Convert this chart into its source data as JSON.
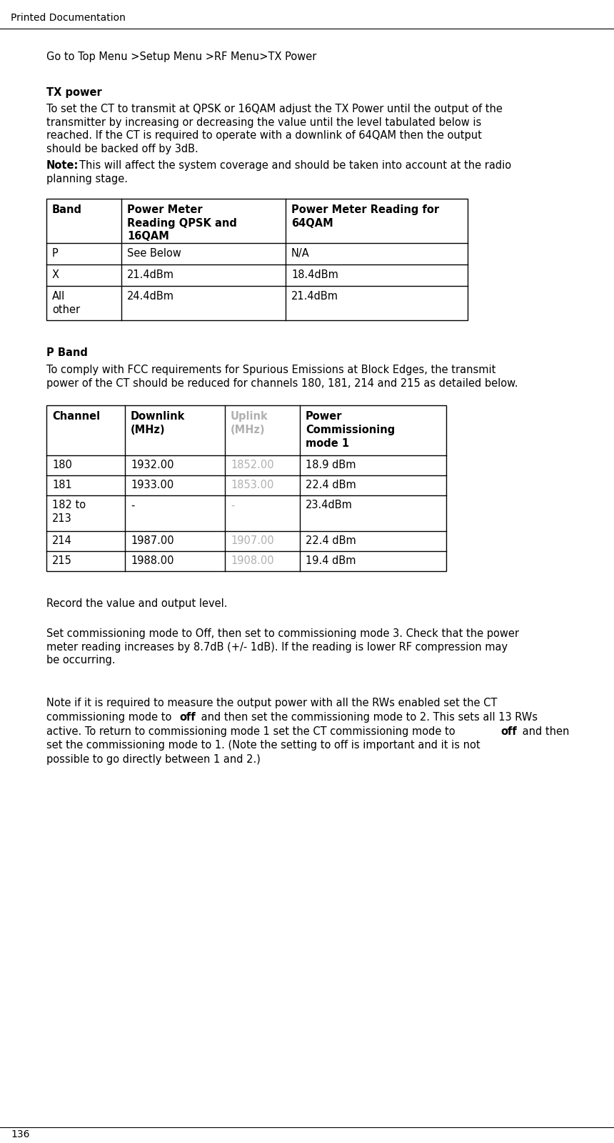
{
  "page_title": "Printed Documentation",
  "page_number": "136",
  "nav_path": "Go to Top Menu >Setup Menu >RF Menu>TX Power",
  "section1_title": "TX power",
  "section1_para": "To set the CT to transmit at QPSK  or 16QAM adjust the TX Power until the output of the transmitter  by increasing or decreasing the value until the level tabulated below is reached.  If the CT is required to operate with a downlink of 64QAM then the output should be backed off by 3dB. ",
  "section1_note_bold": "Note:",
  "section1_note_rest": " This will affect the system coverage and should be taken into account at the radio planning stage.",
  "table1_headers": [
    "Band",
    "Power Meter\nReading QPSK and\n16QAM",
    "Power Meter Reading for\n64QAM"
  ],
  "table1_rows": [
    [
      "P",
      "See Below",
      "N/A"
    ],
    [
      "X",
      "21.4dBm",
      "18.4dBm"
    ],
    [
      "All\nother",
      "24.4dBm",
      "21.4dBm"
    ]
  ],
  "section2_title": "P Band",
  "section2_para": "To comply with FCC requirements for Spurious Emissions at Block Edges, the transmit power of the CT should be reduced for channels 180, 181, 214 and 215 as detailed below.",
  "table2_headers": [
    "Channel",
    "Downlink\n(MHz)",
    "Uplink\n(MHz)",
    "Power\nCommissioning\nmode 1"
  ],
  "table2_header_colors": [
    "#000000",
    "#000000",
    "#b0b0b0",
    "#000000"
  ],
  "table2_rows": [
    [
      "180",
      "1932.00",
      "1852.00",
      "18.9 dBm"
    ],
    [
      "181",
      "1933.00",
      "1853.00",
      "22.4 dBm"
    ],
    [
      "182 to\n213",
      "-",
      "-",
      "23.4dBm"
    ],
    [
      "214",
      "1987.00",
      "1907.00",
      "22.4 dBm"
    ],
    [
      "215",
      "1988.00",
      "1908.00",
      "19.4 dBm"
    ]
  ],
  "table2_col_colors": [
    "#000000",
    "#000000",
    "#b0b0b0",
    "#000000"
  ],
  "para1": "Record the value and output level.",
  "para2": "Set commissioning mode to Off, then set to commissioning mode 3. Check that the power meter reading increases by 8.7dB (+/- 1dB). If the reading is lower RF compression may be occurring.",
  "para3_line1": "Note if it is required to measure the output power with all the RWs enabled set the CT commissioning mode to ",
  "para3_bold": "off",
  "para3_rest": " and then set the commissioning mode to 2. This sets all 13 RWs active. To return to commissioning mode 1 set the CT commissioning mode to off and then set the commissioning mode to 1. (Note the setting to off is important and it is not possible to go directly between 1 and 2.)",
  "bg_color": "#ffffff",
  "lm_inches": 0.65,
  "rm_inches": 8.1,
  "fs": 10.5
}
